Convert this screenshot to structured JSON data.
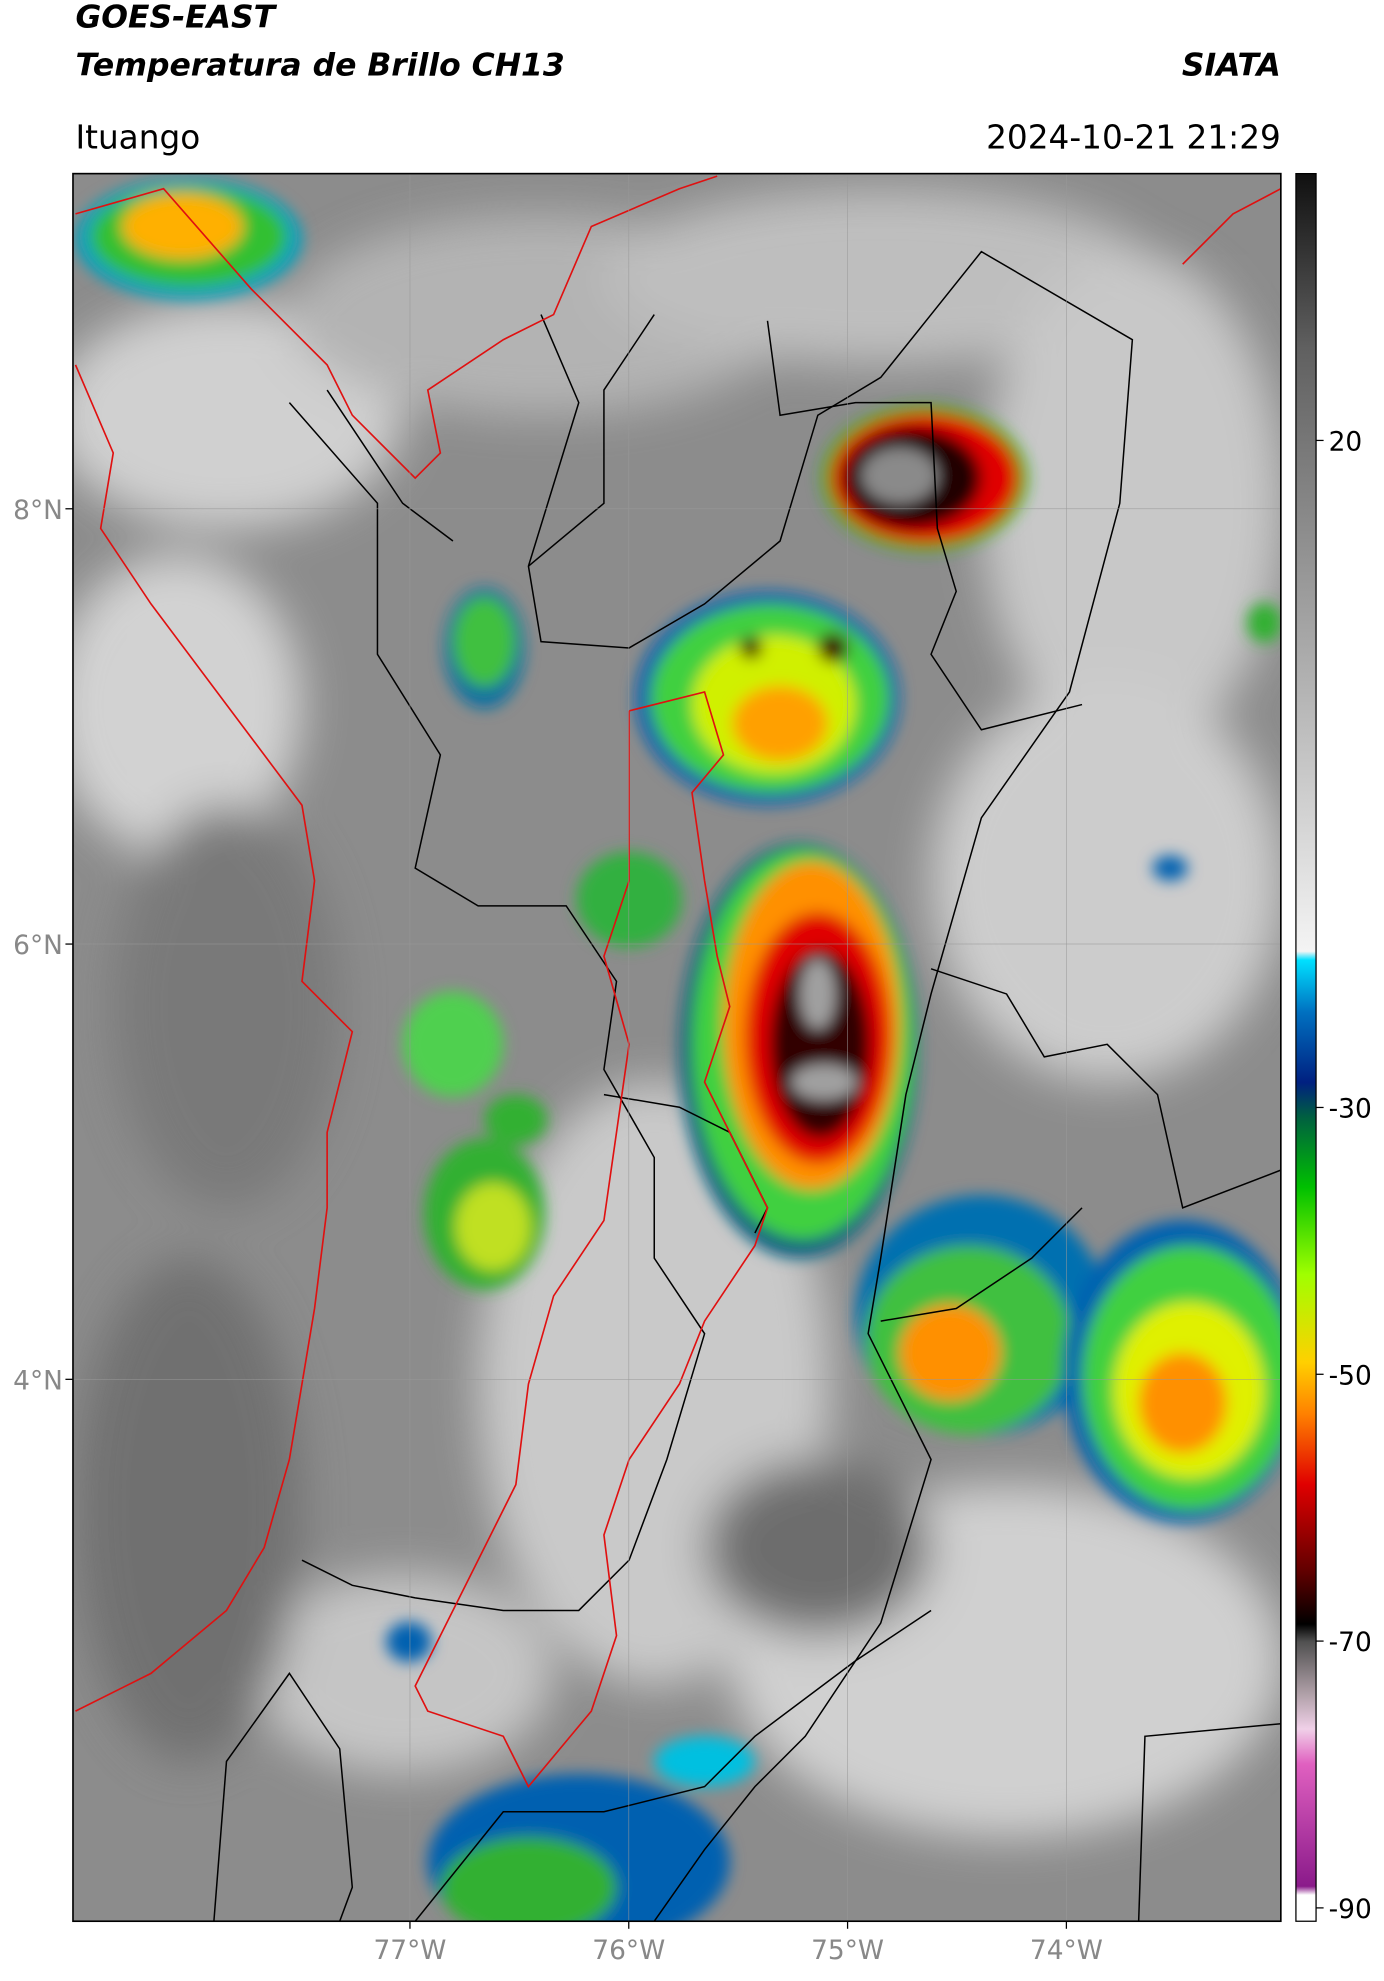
{
  "header": {
    "title": "GOES-EAST",
    "subtitle": "Temperatura de Brillo CH13",
    "source": "SIATA",
    "location": "Ituango",
    "datetime": "2024-10-21 21:29"
  },
  "map": {
    "xlim": [
      -78.54,
      -73.02
    ],
    "ylim": [
      1.51,
      9.54
    ],
    "xticks": [
      {
        "value": -77,
        "label": "77°W"
      },
      {
        "value": -76,
        "label": "76°W"
      },
      {
        "value": -75,
        "label": "75°W"
      },
      {
        "value": -74,
        "label": "74°W"
      }
    ],
    "yticks": [
      {
        "value": 8,
        "label": "8°N"
      },
      {
        "value": 6,
        "label": "6°N"
      },
      {
        "value": 4,
        "label": "4°N"
      }
    ],
    "grid": true
  },
  "colorbar": {
    "lim": [
      -91,
      40
    ],
    "ticks": [
      -90,
      -70,
      -50,
      -30,
      20
    ]
  }
}
